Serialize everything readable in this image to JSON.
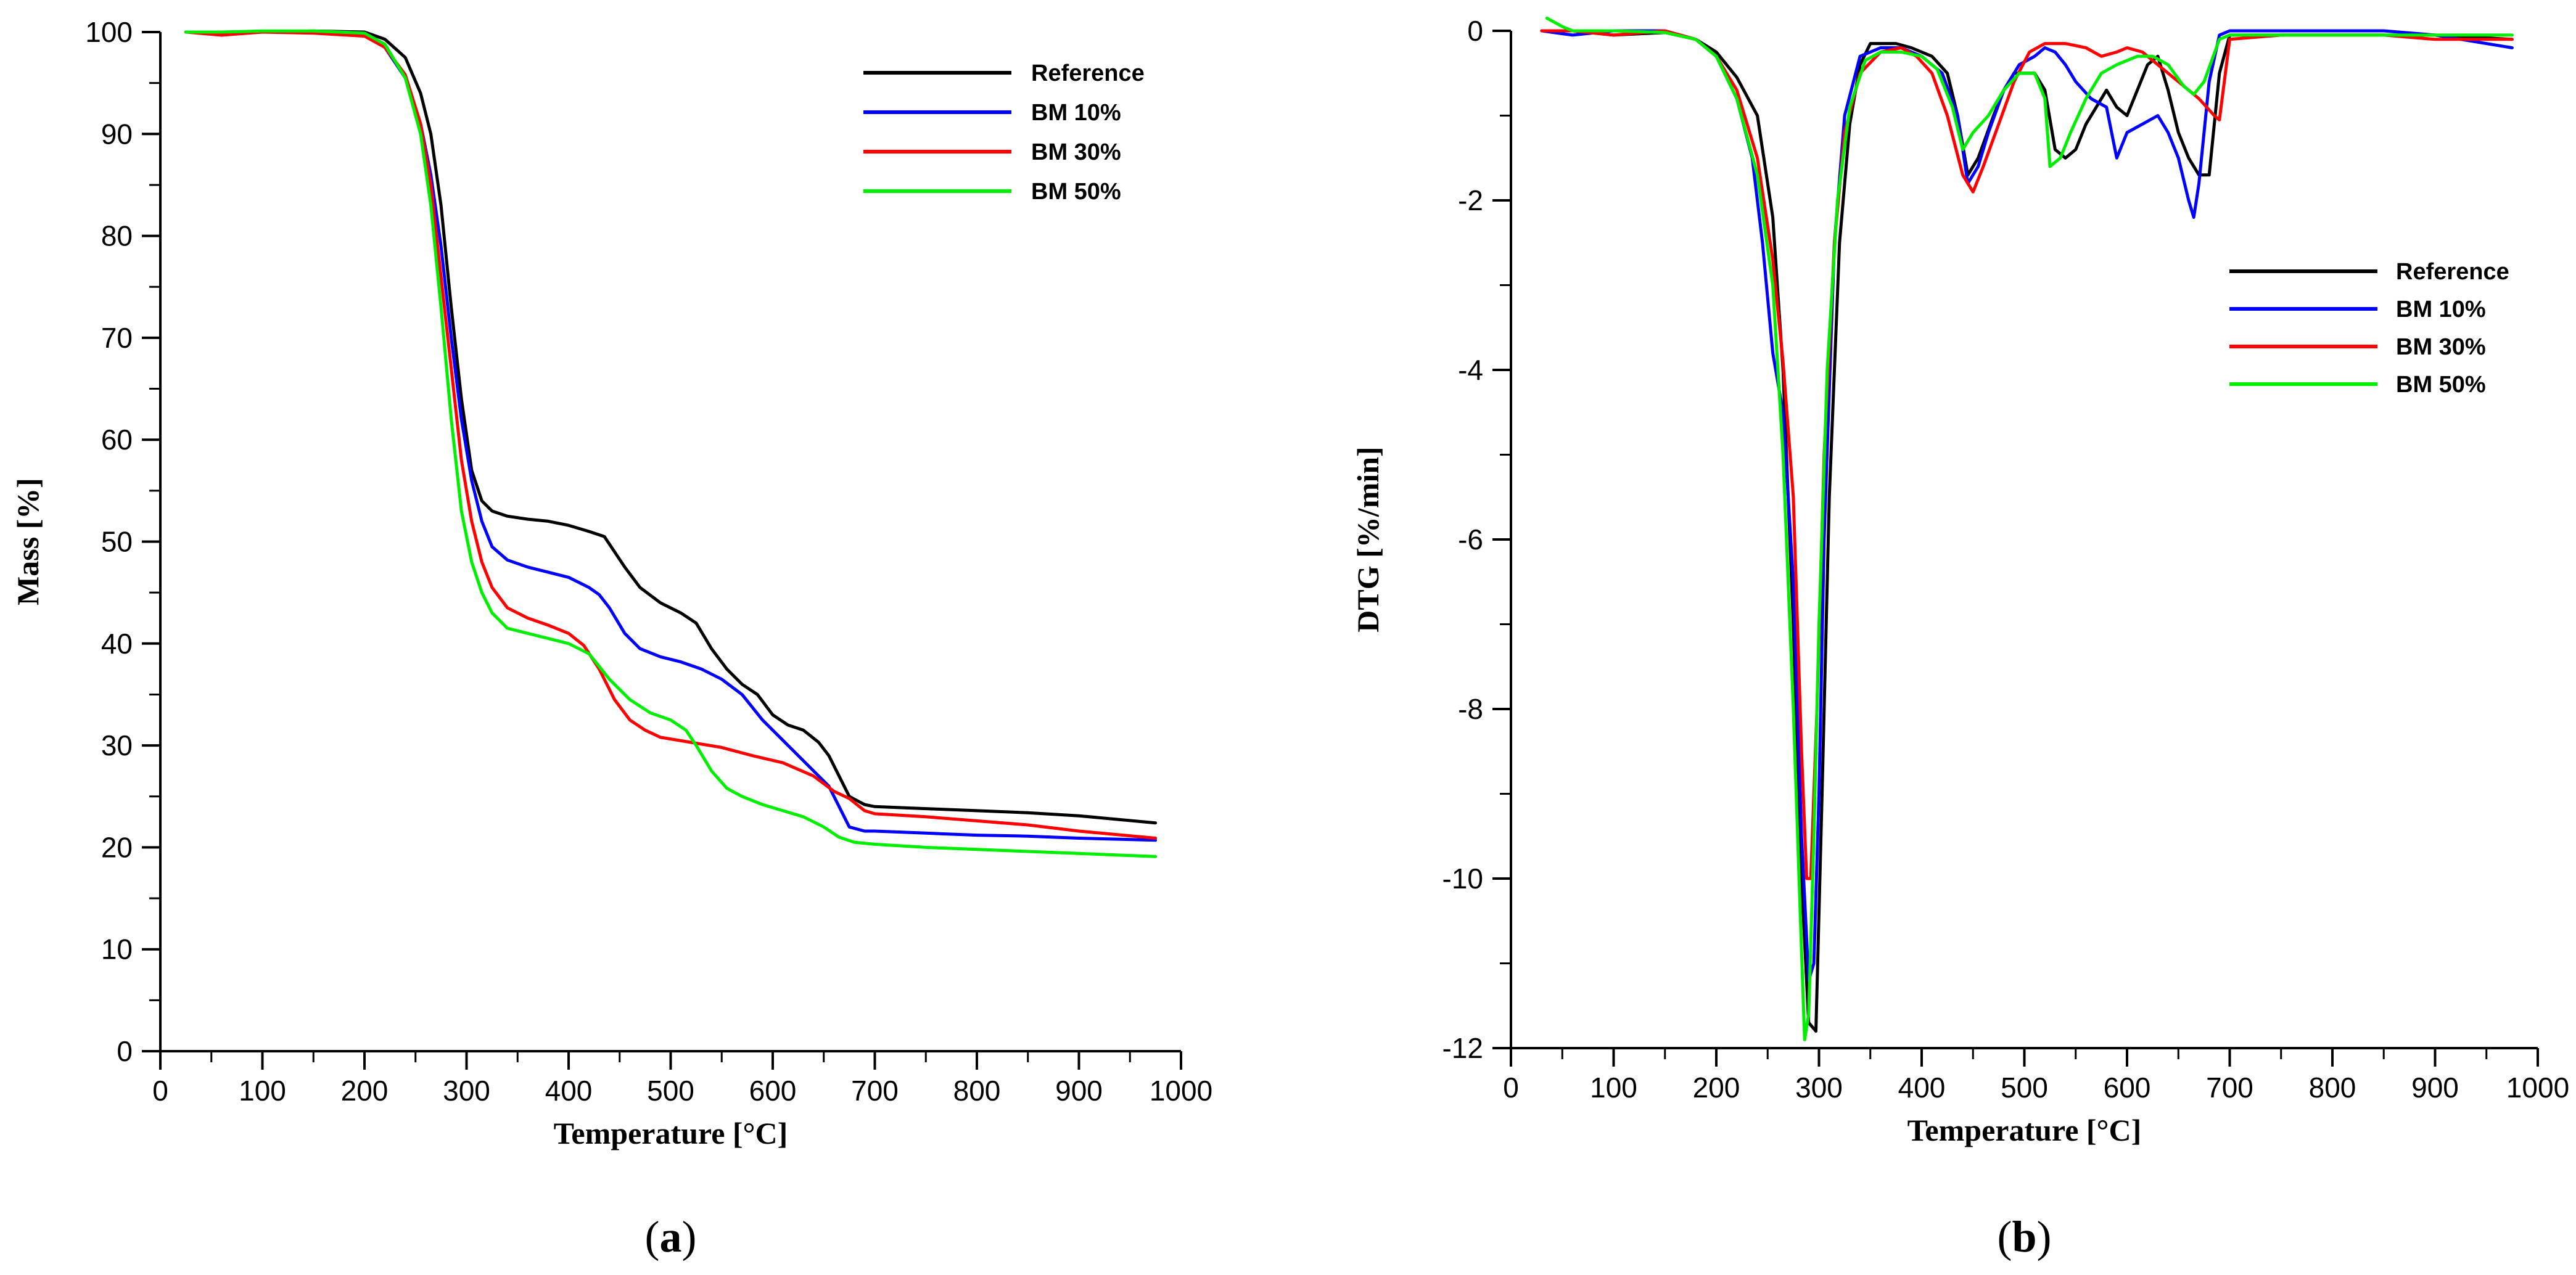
{
  "chart_data": [
    {
      "type": "line",
      "panel_label": "a",
      "xlabel": "Temperature [°C]",
      "ylabel": "Mass [%]",
      "xlim": [
        0,
        1000
      ],
      "ylim": [
        0,
        100
      ],
      "xticks": [
        0,
        100,
        200,
        300,
        400,
        500,
        600,
        700,
        800,
        900,
        1000
      ],
      "yticks": [
        0,
        10,
        20,
        30,
        40,
        50,
        60,
        70,
        80,
        90,
        100
      ],
      "grid": false,
      "legend_position": "top-right",
      "series": [
        {
          "name": "Reference",
          "color": "#000000",
          "x": [
            25,
            60,
            100,
            150,
            200,
            220,
            240,
            255,
            265,
            275,
            285,
            295,
            305,
            315,
            325,
            340,
            360,
            380,
            400,
            420,
            435,
            445,
            455,
            470,
            490,
            510,
            525,
            540,
            555,
            570,
            585,
            600,
            615,
            630,
            645,
            655,
            665,
            675,
            690,
            700,
            750,
            800,
            850,
            900,
            975
          ],
          "y": [
            100,
            100,
            100,
            100.1,
            100,
            99.3,
            97.5,
            94,
            90,
            83,
            73,
            64,
            57,
            54,
            53,
            52.5,
            52.2,
            52,
            51.6,
            51,
            50.5,
            49,
            47.5,
            45.5,
            44,
            43,
            42,
            39.5,
            37.5,
            36,
            35,
            33,
            32,
            31.5,
            30.3,
            29,
            27,
            25,
            24.2,
            24,
            23.8,
            23.6,
            23.4,
            23.1,
            22.4
          ]
        },
        {
          "name": "BM 10%",
          "color": "#0000ff",
          "x": [
            25,
            60,
            100,
            150,
            200,
            220,
            240,
            255,
            265,
            275,
            285,
            295,
            305,
            315,
            325,
            340,
            360,
            380,
            400,
            420,
            430,
            440,
            455,
            470,
            490,
            510,
            530,
            550,
            570,
            590,
            605,
            620,
            640,
            655,
            665,
            675,
            690,
            700,
            750,
            800,
            850,
            900,
            975
          ],
          "y": [
            100,
            100,
            100,
            100,
            99.8,
            98.5,
            95.5,
            91,
            86,
            79,
            70,
            62,
            56,
            52,
            49.5,
            48.2,
            47.5,
            47,
            46.5,
            45.5,
            44.8,
            43.5,
            41,
            39.5,
            38.7,
            38.2,
            37.5,
            36.5,
            35,
            32.5,
            31,
            29.5,
            27.5,
            26,
            24,
            22,
            21.6,
            21.6,
            21.4,
            21.2,
            21.1,
            20.9,
            20.7
          ]
        },
        {
          "name": "BM 30%",
          "color": "#ff0000",
          "x": [
            25,
            60,
            100,
            150,
            200,
            220,
            240,
            255,
            265,
            275,
            285,
            295,
            305,
            315,
            325,
            340,
            360,
            380,
            400,
            415,
            430,
            445,
            460,
            475,
            490,
            520,
            550,
            580,
            610,
            640,
            660,
            675,
            690,
            700,
            750,
            800,
            850,
            900,
            975
          ],
          "y": [
            100,
            99.7,
            100,
            99.9,
            99.6,
            98.5,
            95.8,
            91,
            85,
            76,
            67,
            58,
            52,
            48,
            45.5,
            43.5,
            42.5,
            41.8,
            41,
            39.8,
            37.5,
            34.5,
            32.5,
            31.5,
            30.8,
            30.3,
            29.8,
            29,
            28.3,
            27,
            25.5,
            24.8,
            23.6,
            23.3,
            23,
            22.6,
            22.2,
            21.6,
            20.9
          ]
        },
        {
          "name": "BM 50%",
          "color": "#00ee00",
          "x": [
            25,
            60,
            100,
            150,
            200,
            220,
            240,
            255,
            265,
            275,
            285,
            295,
            305,
            315,
            325,
            340,
            360,
            380,
            400,
            420,
            440,
            460,
            480,
            500,
            515,
            525,
            540,
            555,
            570,
            590,
            610,
            630,
            650,
            665,
            680,
            700,
            750,
            800,
            850,
            900,
            975
          ],
          "y": [
            100,
            100,
            100.1,
            100.1,
            99.9,
            98.8,
            95.5,
            90,
            83,
            73,
            62,
            53,
            48,
            45,
            43,
            41.5,
            41,
            40.5,
            40,
            39,
            36.5,
            34.5,
            33.2,
            32.5,
            31.5,
            30,
            27.5,
            25.8,
            25,
            24.2,
            23.6,
            23,
            22,
            21,
            20.5,
            20.3,
            20,
            19.8,
            19.6,
            19.4,
            19.1
          ]
        }
      ]
    },
    {
      "type": "line",
      "panel_label": "b",
      "xlabel": "Temperature [°C]",
      "ylabel": "DTG [%/min]",
      "xlim": [
        0,
        1000
      ],
      "ylim": [
        -12,
        0
      ],
      "xticks": [
        0,
        100,
        200,
        300,
        400,
        500,
        600,
        700,
        800,
        900,
        1000
      ],
      "yticks": [
        0,
        -2,
        -4,
        -6,
        -8,
        -10,
        -12
      ],
      "grid": false,
      "legend_position": "top-right",
      "series": [
        {
          "name": "Reference",
          "color": "#000000",
          "x": [
            30,
            60,
            100,
            150,
            180,
            200,
            220,
            240,
            255,
            265,
            275,
            283,
            290,
            297,
            303,
            310,
            320,
            330,
            340,
            350,
            360,
            375,
            390,
            410,
            425,
            435,
            445,
            455,
            470,
            480,
            490,
            500,
            510,
            520,
            530,
            540,
            550,
            560,
            570,
            580,
            590,
            600,
            610,
            620,
            630,
            640,
            650,
            660,
            670,
            680,
            690,
            700,
            750,
            800,
            850,
            900,
            975
          ],
          "y": [
            0,
            0,
            -0.05,
            -0.02,
            -0.1,
            -0.25,
            -0.55,
            -1,
            -2.2,
            -4,
            -7,
            -10,
            -11.7,
            -11.8,
            -9,
            -5.5,
            -2.5,
            -1.1,
            -0.4,
            -0.15,
            -0.15,
            -0.15,
            -0.2,
            -0.3,
            -0.5,
            -1,
            -1.7,
            -1.5,
            -1,
            -0.7,
            -0.5,
            -0.5,
            -0.5,
            -0.7,
            -1.4,
            -1.5,
            -1.4,
            -1.1,
            -0.9,
            -0.7,
            -0.9,
            -1,
            -0.7,
            -0.4,
            -0.3,
            -0.7,
            -1.2,
            -1.5,
            -1.7,
            -1.7,
            -0.5,
            -0.05,
            -0.05,
            -0.05,
            -0.05,
            -0.05,
            -0.1
          ]
        },
        {
          "name": "BM 10%",
          "color": "#0000ff",
          "x": [
            30,
            60,
            100,
            150,
            180,
            200,
            220,
            235,
            245,
            255,
            265,
            275,
            283,
            290,
            295,
            300,
            305,
            315,
            325,
            340,
            360,
            380,
            400,
            420,
            435,
            445,
            455,
            465,
            480,
            495,
            510,
            520,
            530,
            540,
            550,
            565,
            580,
            590,
            600,
            615,
            630,
            640,
            650,
            660,
            665,
            670,
            680,
            690,
            700,
            750,
            800,
            850,
            900,
            975
          ],
          "y": [
            0,
            -0.05,
            0,
            0,
            -0.1,
            -0.3,
            -0.8,
            -1.5,
            -2.5,
            -3.8,
            -4.5,
            -6.5,
            -9.5,
            -11.2,
            -11,
            -9,
            -6,
            -2.5,
            -1,
            -0.3,
            -0.2,
            -0.2,
            -0.3,
            -0.5,
            -1,
            -1.8,
            -1.6,
            -1.2,
            -0.7,
            -0.4,
            -0.3,
            -0.2,
            -0.25,
            -0.4,
            -0.6,
            -0.8,
            -0.9,
            -1.5,
            -1.2,
            -1.1,
            -1,
            -1.2,
            -1.5,
            -2,
            -2.2,
            -1.8,
            -0.6,
            -0.05,
            0,
            0,
            0,
            0,
            -0.05,
            -0.2
          ]
        },
        {
          "name": "BM 30%",
          "color": "#ff0000",
          "x": [
            30,
            60,
            100,
            150,
            180,
            200,
            220,
            240,
            255,
            265,
            275,
            283,
            288,
            292,
            298,
            305,
            315,
            325,
            340,
            360,
            380,
            395,
            410,
            425,
            440,
            450,
            460,
            475,
            490,
            505,
            520,
            540,
            560,
            575,
            590,
            600,
            615,
            630,
            650,
            670,
            685,
            690,
            700,
            750,
            800,
            850,
            900,
            975
          ],
          "y": [
            0,
            0,
            -0.05,
            0,
            -0.1,
            -0.3,
            -0.7,
            -1.5,
            -2.7,
            -3.9,
            -5.5,
            -8.5,
            -10,
            -10,
            -8,
            -5,
            -2.5,
            -1.2,
            -0.5,
            -0.25,
            -0.2,
            -0.3,
            -0.5,
            -1,
            -1.7,
            -1.9,
            -1.6,
            -1.1,
            -0.6,
            -0.25,
            -0.15,
            -0.15,
            -0.2,
            -0.3,
            -0.25,
            -0.2,
            -0.25,
            -0.4,
            -0.6,
            -0.8,
            -1,
            -1.05,
            -0.1,
            -0.05,
            -0.05,
            -0.05,
            -0.1,
            -0.1
          ]
        },
        {
          "name": "BM 50%",
          "color": "#00ee00",
          "x": [
            35,
            50,
            60,
            100,
            150,
            180,
            200,
            220,
            240,
            255,
            265,
            275,
            282,
            286,
            290,
            295,
            300,
            308,
            318,
            330,
            345,
            360,
            380,
            400,
            415,
            430,
            440,
            450,
            465,
            480,
            495,
            510,
            520,
            525,
            535,
            545,
            560,
            575,
            590,
            610,
            625,
            640,
            655,
            665,
            675,
            690,
            700,
            750,
            800,
            850,
            900,
            975
          ],
          "y": [
            0.15,
            0.05,
            0,
            0,
            -0.02,
            -0.1,
            -0.3,
            -0.8,
            -1.7,
            -3,
            -5,
            -8,
            -10.5,
            -11.9,
            -11.6,
            -9.5,
            -7,
            -4,
            -2,
            -0.9,
            -0.35,
            -0.25,
            -0.25,
            -0.3,
            -0.45,
            -0.9,
            -1.4,
            -1.2,
            -1,
            -0.7,
            -0.5,
            -0.5,
            -0.8,
            -1.6,
            -1.5,
            -1.2,
            -0.8,
            -0.5,
            -0.4,
            -0.3,
            -0.3,
            -0.4,
            -0.65,
            -0.75,
            -0.6,
            -0.1,
            -0.05,
            -0.05,
            -0.05,
            -0.05,
            -0.05,
            -0.05
          ]
        }
      ]
    }
  ]
}
